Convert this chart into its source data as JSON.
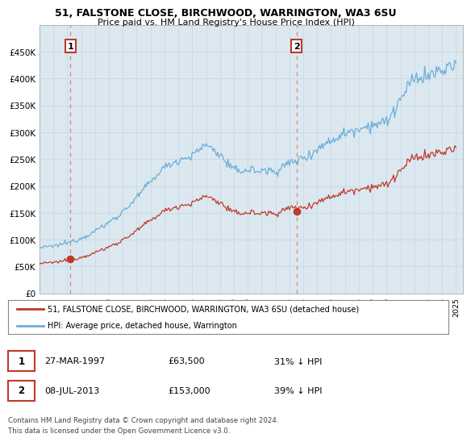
{
  "title1": "51, FALSTONE CLOSE, BIRCHWOOD, WARRINGTON, WA3 6SU",
  "title2": "Price paid vs. HM Land Registry's House Price Index (HPI)",
  "xlim": [
    1995.0,
    2025.5
  ],
  "ylim": [
    0,
    500000
  ],
  "yticks": [
    0,
    50000,
    100000,
    150000,
    200000,
    250000,
    300000,
    350000,
    400000,
    450000
  ],
  "ytick_labels": [
    "£0",
    "£50K",
    "£100K",
    "£150K",
    "£200K",
    "£250K",
    "£300K",
    "£350K",
    "£400K",
    "£450K"
  ],
  "xticks": [
    1995,
    1996,
    1997,
    1998,
    1999,
    2000,
    2001,
    2002,
    2003,
    2004,
    2005,
    2006,
    2007,
    2008,
    2009,
    2010,
    2011,
    2012,
    2013,
    2014,
    2015,
    2016,
    2017,
    2018,
    2019,
    2020,
    2021,
    2022,
    2023,
    2024,
    2025
  ],
  "hpi_color": "#6baed6",
  "price_color": "#c0392b",
  "grid_color": "#c8d8e8",
  "bg_color": "#dce8f0",
  "fig_bg": "#ffffff",
  "sale1_x": 1997.23,
  "sale1_y": 63500,
  "sale2_x": 2013.52,
  "sale2_y": 153000,
  "sale1_label": "1",
  "sale2_label": "2",
  "legend_line1": "51, FALSTONE CLOSE, BIRCHWOOD, WARRINGTON, WA3 6SU (detached house)",
  "legend_line2": "HPI: Average price, detached house, Warrington",
  "table_row1": [
    "1",
    "27-MAR-1997",
    "£63,500",
    "31% ↓ HPI"
  ],
  "table_row2": [
    "2",
    "08-JUL-2013",
    "£153,000",
    "39% ↓ HPI"
  ],
  "footnote1": "Contains HM Land Registry data © Crown copyright and database right 2024.",
  "footnote2": "This data is licensed under the Open Government Licence v3.0.",
  "hpi_annual": [
    85000,
    88000,
    94000,
    103000,
    116000,
    132000,
    152000,
    178000,
    208000,
    235000,
    248000,
    256000,
    278000,
    258000,
    228000,
    230000,
    228000,
    228000,
    242000,
    252000,
    268000,
    285000,
    298000,
    308000,
    314000,
    318000,
    360000,
    400000,
    405000,
    415000,
    425000
  ],
  "hpi_years": [
    1995,
    1996,
    1997,
    1998,
    1999,
    2000,
    2001,
    2002,
    2003,
    2004,
    2005,
    2006,
    2007,
    2008,
    2009,
    2010,
    2011,
    2012,
    2013,
    2014,
    2015,
    2016,
    2017,
    2018,
    2019,
    2020,
    2021,
    2022,
    2023,
    2024,
    2025
  ]
}
